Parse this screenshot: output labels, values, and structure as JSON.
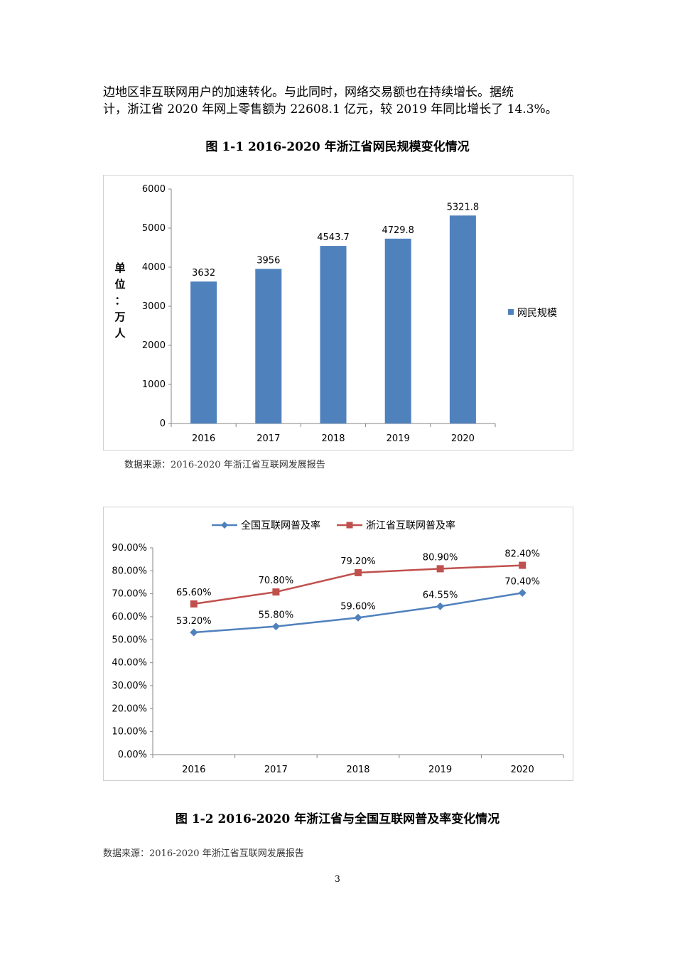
{
  "paragraph": {
    "line1": "边地区非互联网用户的加速转化。与此同时，网络交易额也在持续增长。据统",
    "line2": "计，浙江省 2020 年网上零售额为 22608.1 亿元，较 2019 年同比增长了 14.3%。"
  },
  "figure1": {
    "title": "图 1-1   2016-2020 年浙江省网民规模变化情况",
    "source": "数据来源：2016-2020 年浙江省互联网发展报告"
  },
  "figure2": {
    "title": "图 1-2   2016-2020 年浙江省与全国互联网普及率变化情况",
    "source": "数据来源：2016-2020 年浙江省互联网发展报告"
  },
  "page_number": "3",
  "chart_data": [
    {
      "type": "bar",
      "categories": [
        "2016",
        "2017",
        "2018",
        "2019",
        "2020"
      ],
      "series": [
        {
          "name": "网民规模",
          "values": [
            3632,
            3956,
            4543.7,
            4729.8,
            5321.8
          ],
          "labels": [
            "3632",
            "3956",
            "4543.7",
            "4729.8",
            "5321.8"
          ],
          "color": "#4f81bd"
        }
      ],
      "ylabel": "单位：万人",
      "ylabel_chars": [
        "单",
        "位",
        "：",
        "万",
        "人"
      ],
      "ylim": [
        0,
        6000
      ],
      "yticks": [
        "0",
        "1000",
        "2000",
        "3000",
        "4000",
        "5000",
        "6000"
      ],
      "grid": false,
      "legend": "right"
    },
    {
      "type": "line",
      "categories": [
        "2016",
        "2017",
        "2018",
        "2019",
        "2020"
      ],
      "series": [
        {
          "name": "全国互联网普及率",
          "values": [
            53.2,
            55.8,
            59.6,
            64.55,
            70.4
          ],
          "labels": [
            "53.20%",
            "55.80%",
            "59.60%",
            "64.55%",
            "70.40%"
          ],
          "color": "#4f81bd",
          "marker": "diamond"
        },
        {
          "name": "浙江省互联网普及率",
          "values": [
            65.6,
            70.8,
            79.2,
            80.9,
            82.4
          ],
          "labels": [
            "65.60%",
            "70.80%",
            "79.20%",
            "80.90%",
            "82.40%"
          ],
          "color": "#c0504d",
          "marker": "square"
        }
      ],
      "ylim": [
        0,
        90
      ],
      "yticks": [
        "0.00%",
        "10.00%",
        "20.00%",
        "30.00%",
        "40.00%",
        "50.00%",
        "60.00%",
        "70.00%",
        "80.00%",
        "90.00%"
      ],
      "grid": false,
      "legend": "top"
    }
  ]
}
